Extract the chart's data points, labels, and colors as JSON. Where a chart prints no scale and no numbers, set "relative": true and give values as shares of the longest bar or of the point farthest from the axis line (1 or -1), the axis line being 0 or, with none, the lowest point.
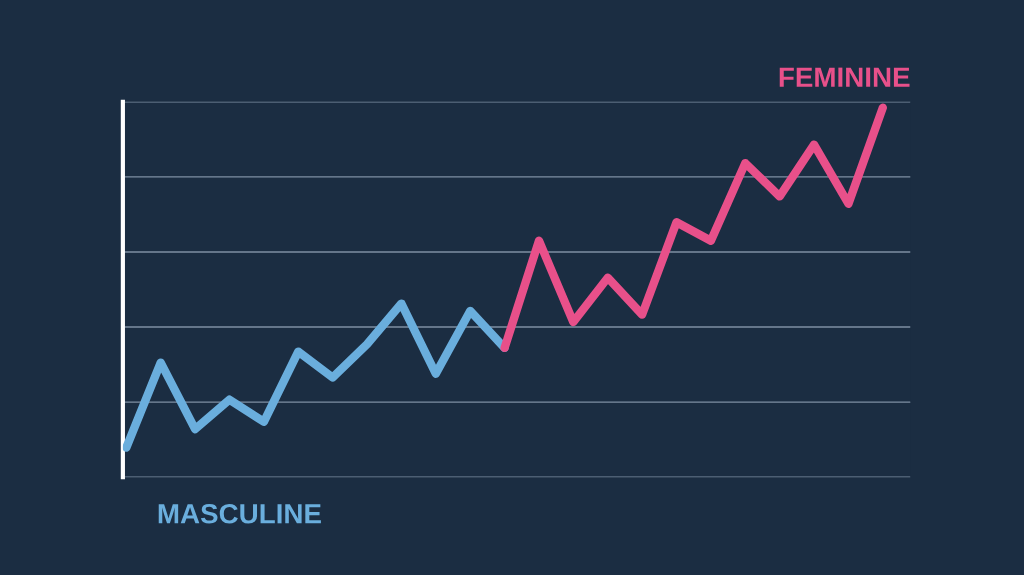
{
  "chart_data": {
    "type": "line",
    "relative": true,
    "grid": "y",
    "categories": [
      null,
      null,
      null,
      null,
      null,
      null,
      null,
      null,
      null,
      null,
      null,
      null,
      null,
      null,
      null,
      null,
      null,
      null,
      null,
      null,
      null,
      null,
      null
    ],
    "series": [
      {
        "color": "#6aaedd",
        "values": [
          0.08,
          0.31,
          0.13,
          0.21,
          0.15,
          0.34,
          0.27,
          0.36,
          0.47,
          0.28,
          0.45,
          0.35,
          null,
          null,
          null,
          null,
          null,
          null,
          null,
          null,
          null,
          null,
          null
        ]
      },
      {
        "color": "#e8508a",
        "values": [
          null,
          null,
          null,
          null,
          null,
          null,
          null,
          null,
          null,
          null,
          null,
          0.35,
          0.64,
          0.42,
          0.54,
          0.44,
          0.69,
          0.64,
          0.85,
          0.76,
          0.9,
          0.74,
          1.0
        ]
      }
    ],
    "annotations": [
      "MASCULINE",
      "FEMININE"
    ]
  }
}
